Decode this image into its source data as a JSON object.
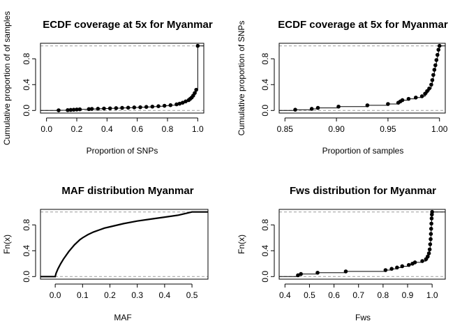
{
  "chart_data": [
    {
      "type": "scatter",
      "title": "ECDF coverage at 5x for Myanmar",
      "xlabel": "Proportion of SNPs",
      "ylabel": "Cumulative proportion of of samples",
      "xlim": [
        -0.04,
        1.04
      ],
      "ylim": [
        -0.04,
        1.04
      ],
      "x_ticks": [
        "0.0",
        "0.2",
        "0.4",
        "0.6",
        "0.8",
        "1.0"
      ],
      "y_ticks": [
        "0.0",
        "0.4",
        "0.8"
      ],
      "reference_lines_y": [
        0,
        1
      ],
      "series": [
        {
          "x": [
            0.08,
            0.14,
            0.16,
            0.18,
            0.2,
            0.22,
            0.28,
            0.3,
            0.34,
            0.38,
            0.42,
            0.46,
            0.5,
            0.54,
            0.58,
            0.62,
            0.66,
            0.7,
            0.74,
            0.78,
            0.82,
            0.86,
            0.88,
            0.9,
            0.92,
            0.94,
            0.95,
            0.96,
            0.97,
            0.98,
            0.99,
            1.0
          ],
          "y": [
            0.003,
            0.006,
            0.009,
            0.012,
            0.015,
            0.018,
            0.021,
            0.024,
            0.027,
            0.03,
            0.033,
            0.036,
            0.04,
            0.043,
            0.047,
            0.05,
            0.055,
            0.06,
            0.066,
            0.073,
            0.082,
            0.095,
            0.105,
            0.12,
            0.14,
            0.16,
            0.18,
            0.2,
            0.23,
            0.27,
            0.32,
            1.0
          ]
        }
      ]
    },
    {
      "type": "scatter",
      "title": "ECDF coverage at 5x for Myanmar",
      "xlabel": "Proportion of samples",
      "ylabel": "Cumulative proportion of SNPs",
      "xlim": [
        0.8444,
        1.0056
      ],
      "ylim": [
        -0.04,
        1.04
      ],
      "x_ticks": [
        "0.85",
        "0.90",
        "0.95",
        "1.00"
      ],
      "y_ticks": [
        "0.0",
        "0.4",
        "0.8"
      ],
      "reference_lines_y": [
        0,
        1
      ],
      "series": [
        {
          "x": [
            0.86,
            0.876,
            0.882,
            0.902,
            0.93,
            0.95,
            0.96,
            0.962,
            0.964,
            0.97,
            0.977,
            0.983,
            0.986,
            0.988,
            0.99,
            0.992,
            0.993,
            0.994,
            0.995,
            0.996,
            0.997,
            0.998,
            0.999,
            1.0
          ],
          "y": [
            0.012,
            0.025,
            0.04,
            0.06,
            0.08,
            0.1,
            0.12,
            0.14,
            0.16,
            0.18,
            0.2,
            0.22,
            0.26,
            0.3,
            0.34,
            0.4,
            0.47,
            0.55,
            0.63,
            0.7,
            0.78,
            0.86,
            0.94,
            1.0
          ]
        }
      ]
    },
    {
      "type": "line",
      "title": "MAF distribution Myanmar",
      "xlabel": "MAF",
      "ylabel": "Fn(x)",
      "xlim": [
        -0.0539,
        0.5585
      ],
      "ylim": [
        -0.04,
        1.04
      ],
      "x_ticks": [
        "0.0",
        "0.1",
        "0.2",
        "0.3",
        "0.4",
        "0.5"
      ],
      "y_ticks": [
        "0.0",
        "0.4",
        "0.8"
      ],
      "reference_lines_y": [
        0,
        1
      ],
      "series": [
        {
          "x": [
            -0.06,
            0.0,
            0.003,
            0.01,
            0.02,
            0.03,
            0.04,
            0.05,
            0.06,
            0.07,
            0.08,
            0.09,
            0.1,
            0.12,
            0.14,
            0.16,
            0.18,
            0.2,
            0.25,
            0.3,
            0.35,
            0.4,
            0.45,
            0.48,
            0.5,
            0.56
          ],
          "y": [
            0.0,
            0.0,
            0.05,
            0.12,
            0.2,
            0.27,
            0.33,
            0.39,
            0.44,
            0.49,
            0.53,
            0.57,
            0.6,
            0.65,
            0.69,
            0.72,
            0.75,
            0.77,
            0.82,
            0.86,
            0.89,
            0.92,
            0.95,
            0.98,
            1.0,
            1.0
          ]
        }
      ]
    },
    {
      "type": "scatter",
      "title": "Fws distribution for Myanmar",
      "xlabel": "Fws",
      "ylabel": "Fn(x)",
      "xlim": [
        0.3764,
        1.0536
      ],
      "ylim": [
        -0.04,
        1.04
      ],
      "x_ticks": [
        "0.4",
        "0.5",
        "0.6",
        "0.7",
        "0.8",
        "0.9",
        "1.0"
      ],
      "y_ticks": [
        "0.0",
        "0.4",
        "0.8"
      ],
      "reference_lines_y": [
        0,
        1
      ],
      "series": [
        {
          "x": [
            0.453,
            0.465,
            0.533,
            0.648,
            0.81,
            0.835,
            0.857,
            0.878,
            0.905,
            0.92,
            0.93,
            0.96,
            0.975,
            0.982,
            0.987,
            0.99,
            0.992,
            0.994,
            0.995,
            0.996,
            0.997,
            0.998,
            0.999,
            1.0
          ],
          "y": [
            0.02,
            0.04,
            0.06,
            0.08,
            0.1,
            0.12,
            0.14,
            0.16,
            0.18,
            0.2,
            0.22,
            0.24,
            0.27,
            0.31,
            0.36,
            0.42,
            0.5,
            0.58,
            0.66,
            0.74,
            0.82,
            0.9,
            0.96,
            1.0
          ]
        }
      ]
    }
  ]
}
